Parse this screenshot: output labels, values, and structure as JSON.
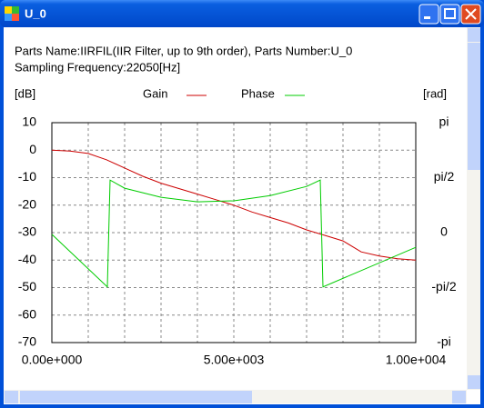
{
  "window": {
    "title": "U_0"
  },
  "header": {
    "parts": "Parts Name:IIRFIL(IIR Filter, up to 9th order), Parts Number:U_0",
    "sampling": "Sampling Frequency:22050[Hz]"
  },
  "chart_data": {
    "type": "line",
    "ylabel": "[dB]",
    "y2label": "[rad]",
    "xlim": [
      0,
      10000
    ],
    "xticks": [
      {
        "value": 0,
        "label": "0.00e+000"
      },
      {
        "value": 5000,
        "label": "5.00e+003"
      },
      {
        "value": 10000,
        "label": "1.00e+004"
      }
    ],
    "xgrid": [
      1000,
      2000,
      3000,
      4000,
      5000,
      6000,
      7000,
      8000,
      9000
    ],
    "ylim": [
      -70,
      10
    ],
    "yticks": [
      -70,
      -60,
      -50,
      -40,
      -30,
      -20,
      -10,
      0,
      10
    ],
    "y2lim": [
      -3.1416,
      3.1416
    ],
    "y2ticks": [
      {
        "value": -3.1416,
        "label": "-pi"
      },
      {
        "value": -1.5708,
        "label": "-pi/2"
      },
      0,
      {
        "value": 1.5708,
        "label": "pi/2"
      },
      {
        "value": 3.1416,
        "label": "pi"
      }
    ],
    "grid": true,
    "series": [
      {
        "name": "Gain",
        "color": "#cc0000",
        "axis": "y",
        "x": [
          0,
          500,
          1000,
          1500,
          2000,
          2500,
          3000,
          3500,
          4000,
          4500,
          5000,
          5500,
          6000,
          6500,
          7000,
          7500,
          8000,
          8500,
          9000,
          9500,
          10000
        ],
        "values": [
          0,
          -0.3,
          -1.2,
          -3.5,
          -6.5,
          -9.5,
          -12,
          -14,
          -16,
          -18,
          -20,
          -22.5,
          -24.5,
          -26.5,
          -29,
          -31,
          -33,
          -37,
          -38.5,
          -39.5,
          -40
        ]
      },
      {
        "name": "Phase",
        "color": "#00cc00",
        "axis": "y2",
        "x": [
          0,
          1525,
          1600,
          2000,
          3000,
          4000,
          5000,
          6000,
          7000,
          7375,
          7450,
          10000
        ],
        "values": [
          -0.05,
          -1.55,
          1.5,
          1.27,
          1.01,
          0.88,
          0.91,
          1.06,
          1.32,
          1.5,
          -1.55,
          -0.42
        ]
      }
    ]
  }
}
